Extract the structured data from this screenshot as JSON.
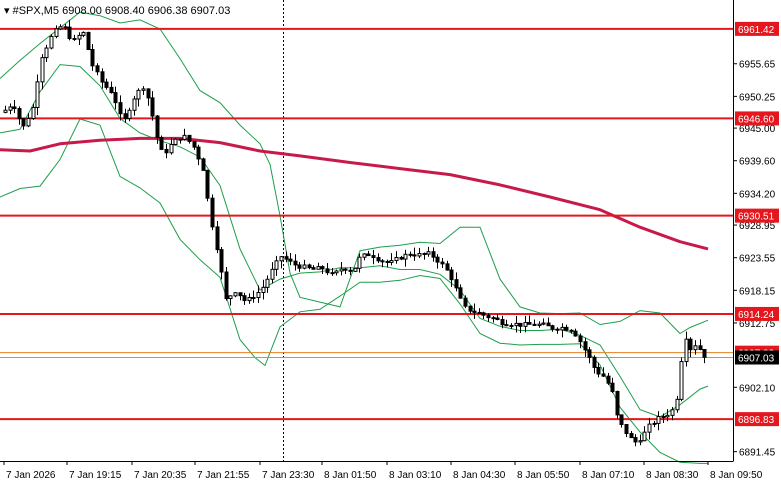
{
  "chart_data": {
    "type": "candlestick",
    "header": {
      "symbol": "#SPX,M5",
      "ohlc": "6908.00 6908.40 6906.38 6907.03"
    },
    "y_axis": {
      "ylim": [
        6889.9,
        6966.2
      ],
      "ticks": [
        {
          "label": "6955.65",
          "value": 6955.65
        },
        {
          "label": "6950.25",
          "value": 6950.25
        },
        {
          "label": "6945.00",
          "value": 6945.0
        },
        {
          "label": "6939.60",
          "value": 6939.6
        },
        {
          "label": "6934.20",
          "value": 6934.2
        },
        {
          "label": "6928.95",
          "value": 6928.95
        },
        {
          "label": "6923.55",
          "value": 6923.55
        },
        {
          "label": "6918.15",
          "value": 6918.15
        },
        {
          "label": "6912.75",
          "value": 6912.75
        },
        {
          "label": "6902.10",
          "value": 6902.1
        },
        {
          "label": "6891.45",
          "value": 6891.45
        }
      ]
    },
    "x_axis": {
      "labels": [
        "7 Jan 2026",
        "7 Jan 19:15",
        "7 Jan 20:35",
        "7 Jan 21:55",
        "7 Jan 23:30",
        "8 Jan 01:50",
        "8 Jan 03:10",
        "8 Jan 04:30",
        "8 Jan 05:50",
        "8 Jan 07:10",
        "8 Jan 08:30",
        "8 Jan 09:50"
      ]
    },
    "levels": [
      {
        "label": "6961.42",
        "value": 6961.42
      },
      {
        "label": "6946.60",
        "value": 6946.6
      },
      {
        "label": "6930.51",
        "value": 6930.51
      },
      {
        "label": "6914.24",
        "value": 6914.24
      },
      {
        "label": "6896.83",
        "value": 6896.83
      }
    ],
    "current_price": {
      "label": "6907.03",
      "value": 6907.03
    },
    "ask_price": {
      "label": "6907.83",
      "value": 6907.83
    },
    "ma_path": [
      [
        0,
        6941.4
      ],
      [
        30,
        6941.2
      ],
      [
        60,
        6942.4
      ],
      [
        100,
        6943.0
      ],
      [
        140,
        6943.3
      ],
      [
        180,
        6943.3
      ],
      [
        220,
        6942.6
      ],
      [
        260,
        6941.2
      ],
      [
        300,
        6940.4
      ],
      [
        350,
        6939.3
      ],
      [
        400,
        6938.3
      ],
      [
        450,
        6937.3
      ],
      [
        500,
        6935.6
      ],
      [
        550,
        6933.6
      ],
      [
        600,
        6931.5
      ],
      [
        640,
        6928.6
      ],
      [
        680,
        6926.2
      ],
      [
        708,
        6925.0
      ]
    ],
    "bb_upper": [
      [
        0,
        6953.2
      ],
      [
        20,
        6956.2
      ],
      [
        40,
        6959.0
      ],
      [
        60,
        6961.6
      ],
      [
        80,
        6964.2
      ],
      [
        100,
        6963.6
      ],
      [
        120,
        6962.4
      ],
      [
        140,
        6962.9
      ],
      [
        160,
        6961.4
      ],
      [
        180,
        6956.5
      ],
      [
        200,
        6951.2
      ],
      [
        220,
        6949.2
      ],
      [
        240,
        6945.5
      ],
      [
        260,
        6942.4
      ],
      [
        270,
        6939.0
      ],
      [
        280,
        6930.5
      ],
      [
        290,
        6921.0
      ],
      [
        300,
        6917.0
      ],
      [
        320,
        6916.2
      ],
      [
        340,
        6915.4
      ],
      [
        360,
        6924.7
      ],
      [
        380,
        6925.3
      ],
      [
        400,
        6925.6
      ],
      [
        420,
        6926.1
      ],
      [
        440,
        6925.9
      ],
      [
        460,
        6928.6
      ],
      [
        480,
        6928.6
      ],
      [
        500,
        6920.0
      ],
      [
        520,
        6915.4
      ],
      [
        540,
        6914.4
      ],
      [
        560,
        6914.3
      ],
      [
        580,
        6914.4
      ],
      [
        600,
        6912.5
      ],
      [
        620,
        6913.0
      ],
      [
        640,
        6914.8
      ],
      [
        660,
        6914.4
      ],
      [
        680,
        6911.0
      ],
      [
        690,
        6912.0
      ],
      [
        708,
        6913.2
      ]
    ],
    "bb_middle": [
      [
        0,
        6944.2
      ],
      [
        20,
        6944.8
      ],
      [
        40,
        6951.0
      ],
      [
        60,
        6955.5
      ],
      [
        80,
        6955.2
      ],
      [
        100,
        6952.0
      ],
      [
        120,
        6946.6
      ],
      [
        140,
        6944.2
      ],
      [
        160,
        6942.9
      ],
      [
        180,
        6941.9
      ],
      [
        200,
        6940.2
      ],
      [
        220,
        6935.5
      ],
      [
        240,
        6925.0
      ],
      [
        260,
        6918.2
      ],
      [
        280,
        6920.0
      ],
      [
        300,
        6921.0
      ],
      [
        320,
        6921.2
      ],
      [
        340,
        6921.9
      ],
      [
        360,
        6921.9
      ],
      [
        380,
        6922.2
      ],
      [
        400,
        6921.6
      ],
      [
        420,
        6921.6
      ],
      [
        440,
        6920.8
      ],
      [
        460,
        6918.2
      ],
      [
        480,
        6913.5
      ],
      [
        500,
        6912.2
      ],
      [
        520,
        6911.5
      ],
      [
        540,
        6911.5
      ],
      [
        560,
        6911.7
      ],
      [
        580,
        6910.7
      ],
      [
        600,
        6909.1
      ],
      [
        620,
        6903.9
      ],
      [
        640,
        6898.4
      ],
      [
        660,
        6897.2
      ],
      [
        680,
        6899.2
      ],
      [
        700,
        6901.8
      ],
      [
        708,
        6902.3
      ]
    ],
    "bb_lower": [
      [
        0,
        6933.6
      ],
      [
        20,
        6935.0
      ],
      [
        40,
        6935.4
      ],
      [
        60,
        6939.8
      ],
      [
        80,
        6946.5
      ],
      [
        100,
        6945.5
      ],
      [
        120,
        6937.0
      ],
      [
        140,
        6935.1
      ],
      [
        160,
        6932.6
      ],
      [
        180,
        6926.6
      ],
      [
        200,
        6923.2
      ],
      [
        220,
        6920.3
      ],
      [
        240,
        6910.0
      ],
      [
        255,
        6907.0
      ],
      [
        265,
        6905.7
      ],
      [
        280,
        6912.1
      ],
      [
        300,
        6914.6
      ],
      [
        320,
        6915.0
      ],
      [
        340,
        6917.2
      ],
      [
        360,
        6919.5
      ],
      [
        380,
        6919.5
      ],
      [
        400,
        6919.8
      ],
      [
        420,
        6920.6
      ],
      [
        440,
        6920.1
      ],
      [
        460,
        6915.9
      ],
      [
        480,
        6911.0
      ],
      [
        500,
        6909.4
      ],
      [
        520,
        6909.1
      ],
      [
        540,
        6909.2
      ],
      [
        560,
        6909.2
      ],
      [
        580,
        6909.3
      ],
      [
        600,
        6905.8
      ],
      [
        620,
        6898.8
      ],
      [
        640,
        6894.7
      ],
      [
        660,
        6891.3
      ],
      [
        680,
        6889.7
      ],
      [
        700,
        6889.5
      ],
      [
        708,
        6889.5
      ]
    ],
    "price_path": [
      [
        5,
        6947.6
      ],
      [
        15,
        6949.2
      ],
      [
        25,
        6945.0
      ],
      [
        35,
        6948.4
      ],
      [
        43,
        6956.6
      ],
      [
        55,
        6960.6
      ],
      [
        65,
        6962.1
      ],
      [
        75,
        6959.2
      ],
      [
        85,
        6961.0
      ],
      [
        95,
        6955.2
      ],
      [
        105,
        6952.3
      ],
      [
        115,
        6950.8
      ],
      [
        125,
        6945.6
      ],
      [
        135,
        6949.8
      ],
      [
        145,
        6952.0
      ],
      [
        152,
        6949.2
      ],
      [
        158,
        6944.0
      ],
      [
        165,
        6940.5
      ],
      [
        175,
        6942.6
      ],
      [
        185,
        6943.8
      ],
      [
        195,
        6942.2
      ],
      [
        205,
        6938.4
      ],
      [
        212,
        6930.8
      ],
      [
        220,
        6924.4
      ],
      [
        228,
        6916.6
      ],
      [
        238,
        6918.2
      ],
      [
        248,
        6916.2
      ],
      [
        256,
        6917.3
      ],
      [
        263,
        6918.1
      ],
      [
        273,
        6921.1
      ],
      [
        283,
        6923.8
      ],
      [
        295,
        6922.5
      ],
      [
        305,
        6922.0
      ],
      [
        315,
        6921.6
      ],
      [
        325,
        6921.8
      ],
      [
        335,
        6920.6
      ],
      [
        345,
        6922.0
      ],
      [
        355,
        6921.3
      ],
      [
        362,
        6923.6
      ],
      [
        372,
        6924.2
      ],
      [
        382,
        6923.2
      ],
      [
        392,
        6922.6
      ],
      [
        402,
        6923.6
      ],
      [
        412,
        6924.2
      ],
      [
        422,
        6924.0
      ],
      [
        432,
        6924.2
      ],
      [
        442,
        6922.8
      ],
      [
        452,
        6920.8
      ],
      [
        460,
        6917.6
      ],
      [
        466,
        6915.3
      ],
      [
        475,
        6914.7
      ],
      [
        485,
        6914.1
      ],
      [
        495,
        6913.5
      ],
      [
        505,
        6912.8
      ],
      [
        515,
        6912.6
      ],
      [
        525,
        6912.4
      ],
      [
        535,
        6912.5
      ],
      [
        545,
        6912.4
      ],
      [
        555,
        6911.9
      ],
      [
        565,
        6912.0
      ],
      [
        575,
        6911.6
      ],
      [
        582,
        6909.8
      ],
      [
        590,
        6907.4
      ],
      [
        598,
        6904.8
      ],
      [
        606,
        6903.9
      ],
      [
        614,
        6901.6
      ],
      [
        620,
        6896.6
      ],
      [
        626,
        6895.2
      ],
      [
        632,
        6893.7
      ],
      [
        638,
        6893.0
      ],
      [
        645,
        6894.1
      ],
      [
        652,
        6895.8
      ],
      [
        660,
        6896.9
      ],
      [
        668,
        6897.5
      ],
      [
        675,
        6898.4
      ],
      [
        680,
        6901.0
      ],
      [
        684,
        6907.5
      ],
      [
        688,
        6910.5
      ],
      [
        693,
        6908.4
      ],
      [
        698,
        6909.3
      ],
      [
        703,
        6908.2
      ],
      [
        708,
        6907.0
      ]
    ]
  }
}
